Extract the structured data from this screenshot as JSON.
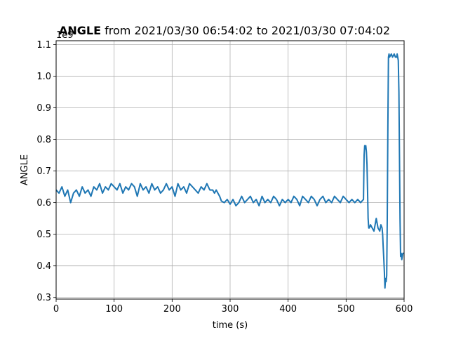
{
  "chart_data": {
    "type": "line",
    "title_bold": "ANGLE",
    "title_rest": " from 2021/03/30 06:54:02 to 2021/03/30 07:04:02",
    "xlabel": "time (s)",
    "ylabel": "ANGLE",
    "y_offset_label": "1e9",
    "xlim": [
      0,
      600
    ],
    "ylim": [
      0.295,
      1.112
    ],
    "xticks": [
      0,
      100,
      200,
      300,
      400,
      500,
      600
    ],
    "xtick_labels": [
      "0",
      "100",
      "200",
      "300",
      "400",
      "500",
      "600"
    ],
    "yticks": [
      0.3,
      0.4,
      0.5,
      0.6,
      0.7,
      0.8,
      0.9,
      1.0,
      1.1
    ],
    "ytick_labels": [
      "0.3",
      "0.4",
      "0.5",
      "0.6",
      "0.7",
      "0.8",
      "0.9",
      "1.0",
      "1.1"
    ],
    "grid": true,
    "color": "#1f77b4",
    "series": [
      {
        "x": [
          0,
          5,
          10,
          15,
          20,
          25,
          30,
          35,
          40,
          45,
          50,
          55,
          60,
          65,
          70,
          75,
          80,
          85,
          90,
          95,
          100,
          105,
          110,
          115,
          120,
          125,
          130,
          135,
          140,
          145,
          150,
          155,
          160,
          165,
          170,
          175,
          180,
          185,
          190,
          195,
          200,
          205,
          210,
          215,
          220,
          225,
          230,
          235,
          240,
          245,
          250,
          255,
          260,
          265,
          270,
          273,
          276,
          279,
          282,
          285,
          290,
          295,
          300,
          305,
          310,
          315,
          320,
          325,
          330,
          335,
          340,
          345,
          350,
          355,
          360,
          365,
          370,
          375,
          380,
          385,
          390,
          395,
          400,
          405,
          410,
          415,
          420,
          425,
          430,
          435,
          440,
          445,
          450,
          455,
          460,
          465,
          470,
          475,
          480,
          485,
          490,
          495,
          500,
          505,
          510,
          515,
          520,
          525,
          530,
          531,
          532,
          533,
          534,
          535,
          536,
          537,
          538,
          539,
          540,
          542,
          545,
          548,
          550,
          552,
          555,
          558,
          560,
          562,
          563,
          564,
          565,
          566,
          567,
          568,
          569,
          570,
          571,
          572,
          573,
          574,
          575,
          578,
          580,
          583,
          585,
          587,
          588,
          589,
          590,
          591,
          592,
          593,
          594,
          595,
          596,
          597,
          598,
          600
        ],
        "y": [
          0.64,
          0.63,
          0.65,
          0.62,
          0.64,
          0.6,
          0.63,
          0.64,
          0.62,
          0.65,
          0.63,
          0.64,
          0.62,
          0.65,
          0.64,
          0.66,
          0.63,
          0.65,
          0.64,
          0.66,
          0.65,
          0.64,
          0.66,
          0.63,
          0.65,
          0.64,
          0.66,
          0.65,
          0.62,
          0.66,
          0.64,
          0.65,
          0.63,
          0.66,
          0.64,
          0.65,
          0.63,
          0.64,
          0.66,
          0.64,
          0.65,
          0.62,
          0.66,
          0.64,
          0.65,
          0.63,
          0.66,
          0.65,
          0.64,
          0.63,
          0.65,
          0.64,
          0.66,
          0.64,
          0.64,
          0.63,
          0.64,
          0.63,
          0.62,
          0.605,
          0.6,
          0.61,
          0.595,
          0.61,
          0.59,
          0.6,
          0.62,
          0.6,
          0.61,
          0.62,
          0.6,
          0.61,
          0.59,
          0.62,
          0.6,
          0.61,
          0.6,
          0.62,
          0.61,
          0.59,
          0.61,
          0.6,
          0.61,
          0.6,
          0.62,
          0.61,
          0.59,
          0.62,
          0.61,
          0.6,
          0.62,
          0.61,
          0.59,
          0.61,
          0.62,
          0.6,
          0.61,
          0.6,
          0.62,
          0.61,
          0.6,
          0.62,
          0.61,
          0.6,
          0.61,
          0.6,
          0.61,
          0.6,
          0.61,
          0.75,
          0.78,
          0.77,
          0.78,
          0.76,
          0.72,
          0.64,
          0.55,
          0.52,
          0.52,
          0.53,
          0.52,
          0.51,
          0.53,
          0.55,
          0.52,
          0.51,
          0.53,
          0.52,
          0.5,
          0.46,
          0.42,
          0.38,
          0.33,
          0.36,
          0.35,
          0.37,
          0.55,
          0.85,
          1.06,
          1.07,
          1.06,
          1.07,
          1.06,
          1.07,
          1.06,
          1.06,
          1.07,
          1.06,
          1.05,
          0.95,
          0.75,
          0.55,
          0.43,
          0.44,
          0.42,
          0.43,
          0.44,
          0.44
        ]
      }
    ]
  }
}
